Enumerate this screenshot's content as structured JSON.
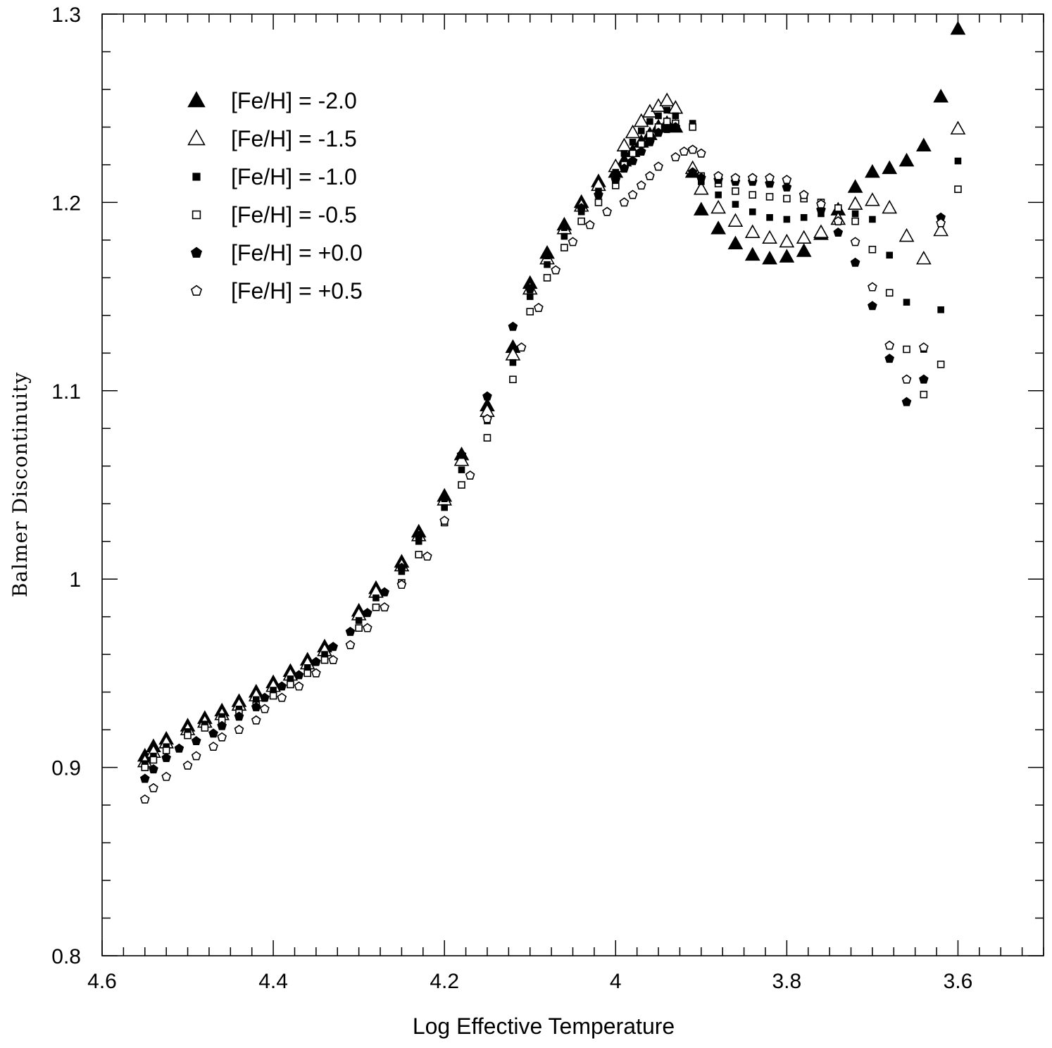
{
  "chart_data": {
    "type": "scatter",
    "title": "",
    "xlabel": "Log Effective Temperature",
    "ylabel": "Balmer Discontinuity",
    "xlim": [
      4.6,
      3.5
    ],
    "ylim": [
      0.8,
      1.3
    ],
    "x_reversed": true,
    "x_ticks": [
      "4.6",
      "4.4",
      "4.2",
      "4",
      "3.8",
      "3.6"
    ],
    "x_tick_values": [
      4.6,
      4.4,
      4.2,
      4.0,
      3.8,
      3.6
    ],
    "y_ticks": [
      "0.8",
      "0.9",
      "1",
      "1.1",
      "1.2",
      "1.3"
    ],
    "y_tick_values": [
      0.8,
      0.9,
      1.0,
      1.1,
      1.2,
      1.3
    ],
    "grid": false,
    "legend_position": "top-left",
    "series": [
      {
        "name": "[Fe/H] = -2.0",
        "marker": "triangle-filled",
        "points": [
          [
            4.55,
            0.906
          ],
          [
            4.54,
            0.911
          ],
          [
            4.525,
            0.915
          ],
          [
            4.5,
            0.922
          ],
          [
            4.48,
            0.926
          ],
          [
            4.46,
            0.93
          ],
          [
            4.44,
            0.935
          ],
          [
            4.42,
            0.94
          ],
          [
            4.4,
            0.945
          ],
          [
            4.38,
            0.951
          ],
          [
            4.36,
            0.957
          ],
          [
            4.34,
            0.964
          ],
          [
            4.3,
            0.983
          ],
          [
            4.28,
            0.995
          ],
          [
            4.25,
            1.009
          ],
          [
            4.23,
            1.025
          ],
          [
            4.2,
            1.044
          ],
          [
            4.18,
            1.066
          ],
          [
            4.15,
            1.092
          ],
          [
            4.12,
            1.123
          ],
          [
            4.1,
            1.157
          ],
          [
            4.08,
            1.173
          ],
          [
            4.06,
            1.188
          ],
          [
            4.04,
            1.2
          ],
          [
            4.02,
            1.211
          ],
          [
            4.0,
            1.216
          ],
          [
            3.99,
            1.222
          ],
          [
            3.98,
            1.227
          ],
          [
            3.97,
            1.232
          ],
          [
            3.96,
            1.236
          ],
          [
            3.95,
            1.24
          ],
          [
            3.94,
            1.242
          ],
          [
            3.93,
            1.24
          ],
          [
            3.91,
            1.216
          ],
          [
            3.9,
            1.196
          ],
          [
            3.88,
            1.186
          ],
          [
            3.86,
            1.178
          ],
          [
            3.84,
            1.172
          ],
          [
            3.82,
            1.17
          ],
          [
            3.8,
            1.171
          ],
          [
            3.78,
            1.174
          ],
          [
            3.76,
            1.183
          ],
          [
            3.74,
            1.196
          ],
          [
            3.72,
            1.208
          ],
          [
            3.7,
            1.216
          ],
          [
            3.68,
            1.218
          ],
          [
            3.66,
            1.222
          ],
          [
            3.64,
            1.23
          ],
          [
            3.62,
            1.256
          ],
          [
            3.6,
            1.292
          ]
        ]
      },
      {
        "name": "[Fe/H] = -1.5",
        "marker": "triangle-open",
        "points": [
          [
            4.55,
            0.903
          ],
          [
            4.54,
            0.908
          ],
          [
            4.525,
            0.913
          ],
          [
            4.5,
            0.92
          ],
          [
            4.48,
            0.924
          ],
          [
            4.46,
            0.928
          ],
          [
            4.44,
            0.933
          ],
          [
            4.42,
            0.938
          ],
          [
            4.4,
            0.943
          ],
          [
            4.38,
            0.949
          ],
          [
            4.36,
            0.955
          ],
          [
            4.34,
            0.962
          ],
          [
            4.3,
            0.981
          ],
          [
            4.28,
            0.993
          ],
          [
            4.25,
            1.007
          ],
          [
            4.23,
            1.023
          ],
          [
            4.2,
            1.042
          ],
          [
            4.18,
            1.063
          ],
          [
            4.15,
            1.089
          ],
          [
            4.12,
            1.119
          ],
          [
            4.1,
            1.154
          ],
          [
            4.08,
            1.17
          ],
          [
            4.06,
            1.186
          ],
          [
            4.04,
            1.198
          ],
          [
            4.02,
            1.209
          ],
          [
            4.0,
            1.219
          ],
          [
            3.99,
            1.23
          ],
          [
            3.98,
            1.237
          ],
          [
            3.97,
            1.243
          ],
          [
            3.96,
            1.248
          ],
          [
            3.95,
            1.251
          ],
          [
            3.94,
            1.254
          ],
          [
            3.93,
            1.25
          ],
          [
            3.91,
            1.218
          ],
          [
            3.9,
            1.207
          ],
          [
            3.88,
            1.197
          ],
          [
            3.86,
            1.19
          ],
          [
            3.84,
            1.184
          ],
          [
            3.82,
            1.181
          ],
          [
            3.8,
            1.179
          ],
          [
            3.78,
            1.181
          ],
          [
            3.76,
            1.184
          ],
          [
            3.74,
            1.191
          ],
          [
            3.72,
            1.199
          ],
          [
            3.7,
            1.201
          ],
          [
            3.68,
            1.197
          ],
          [
            3.66,
            1.182
          ],
          [
            3.64,
            1.17
          ],
          [
            3.62,
            1.185
          ],
          [
            3.6,
            1.239
          ]
        ]
      },
      {
        "name": "[Fe/H] = -1.0",
        "marker": "square-filled",
        "points": [
          [
            4.55,
            0.902
          ],
          [
            4.54,
            0.906
          ],
          [
            4.525,
            0.911
          ],
          [
            4.5,
            0.919
          ],
          [
            4.48,
            0.923
          ],
          [
            4.46,
            0.927
          ],
          [
            4.44,
            0.931
          ],
          [
            4.42,
            0.936
          ],
          [
            4.4,
            0.941
          ],
          [
            4.38,
            0.947
          ],
          [
            4.36,
            0.953
          ],
          [
            4.34,
            0.96
          ],
          [
            4.3,
            0.978
          ],
          [
            4.28,
            0.99
          ],
          [
            4.25,
            1.004
          ],
          [
            4.23,
            1.02
          ],
          [
            4.2,
            1.038
          ],
          [
            4.18,
            1.058
          ],
          [
            4.15,
            1.084
          ],
          [
            4.12,
            1.115
          ],
          [
            4.1,
            1.15
          ],
          [
            4.08,
            1.167
          ],
          [
            4.06,
            1.182
          ],
          [
            4.04,
            1.195
          ],
          [
            4.02,
            1.206
          ],
          [
            4.0,
            1.216
          ],
          [
            3.99,
            1.226
          ],
          [
            3.98,
            1.232
          ],
          [
            3.97,
            1.238
          ],
          [
            3.96,
            1.243
          ],
          [
            3.95,
            1.246
          ],
          [
            3.94,
            1.249
          ],
          [
            3.93,
            1.246
          ],
          [
            3.91,
            1.242
          ],
          [
            3.9,
            1.211
          ],
          [
            3.88,
            1.204
          ],
          [
            3.86,
            1.199
          ],
          [
            3.84,
            1.195
          ],
          [
            3.82,
            1.192
          ],
          [
            3.8,
            1.191
          ],
          [
            3.78,
            1.192
          ],
          [
            3.76,
            1.194
          ],
          [
            3.74,
            1.196
          ],
          [
            3.72,
            1.194
          ],
          [
            3.7,
            1.191
          ],
          [
            3.68,
            1.172
          ],
          [
            3.66,
            1.147
          ],
          [
            3.64,
            1.122
          ],
          [
            3.62,
            1.143
          ],
          [
            3.6,
            1.222
          ]
        ]
      },
      {
        "name": "[Fe/H] = -0.5",
        "marker": "square-open",
        "points": [
          [
            4.55,
            0.9
          ],
          [
            4.54,
            0.904
          ],
          [
            4.525,
            0.909
          ],
          [
            4.5,
            0.917
          ],
          [
            4.48,
            0.921
          ],
          [
            4.46,
            0.925
          ],
          [
            4.44,
            0.929
          ],
          [
            4.42,
            0.933
          ],
          [
            4.4,
            0.938
          ],
          [
            4.38,
            0.944
          ],
          [
            4.36,
            0.95
          ],
          [
            4.34,
            0.957
          ],
          [
            4.3,
            0.974
          ],
          [
            4.28,
            0.985
          ],
          [
            4.25,
            0.998
          ],
          [
            4.23,
            1.013
          ],
          [
            4.2,
            1.03
          ],
          [
            4.18,
            1.05
          ],
          [
            4.15,
            1.075
          ],
          [
            4.12,
            1.106
          ],
          [
            4.1,
            1.142
          ],
          [
            4.08,
            1.16
          ],
          [
            4.06,
            1.176
          ],
          [
            4.04,
            1.19
          ],
          [
            4.02,
            1.2
          ],
          [
            4.0,
            1.209
          ],
          [
            3.99,
            1.22
          ],
          [
            3.98,
            1.226
          ],
          [
            3.97,
            1.231
          ],
          [
            3.96,
            1.236
          ],
          [
            3.95,
            1.24
          ],
          [
            3.94,
            1.243
          ],
          [
            3.93,
            1.242
          ],
          [
            3.91,
            1.24
          ],
          [
            3.9,
            1.214
          ],
          [
            3.88,
            1.21
          ],
          [
            3.86,
            1.206
          ],
          [
            3.84,
            1.204
          ],
          [
            3.82,
            1.203
          ],
          [
            3.8,
            1.202
          ],
          [
            3.78,
            1.202
          ],
          [
            3.76,
            1.2
          ],
          [
            3.74,
            1.197
          ],
          [
            3.72,
            1.19
          ],
          [
            3.7,
            1.175
          ],
          [
            3.68,
            1.152
          ],
          [
            3.66,
            1.122
          ],
          [
            3.64,
            1.098
          ],
          [
            3.62,
            1.114
          ],
          [
            3.6,
            1.207
          ]
        ]
      },
      {
        "name": "[Fe/H] = +0.0",
        "marker": "pentagon-filled",
        "points": [
          [
            4.55,
            0.894
          ],
          [
            4.54,
            0.899
          ],
          [
            4.525,
            0.905
          ],
          [
            4.51,
            0.91
          ],
          [
            4.49,
            0.914
          ],
          [
            4.47,
            0.918
          ],
          [
            4.46,
            0.922
          ],
          [
            4.44,
            0.927
          ],
          [
            4.42,
            0.932
          ],
          [
            4.41,
            0.937
          ],
          [
            4.39,
            0.943
          ],
          [
            4.37,
            0.949
          ],
          [
            4.35,
            0.956
          ],
          [
            4.33,
            0.964
          ],
          [
            4.31,
            0.972
          ],
          [
            4.29,
            0.982
          ],
          [
            4.27,
            0.993
          ],
          [
            4.25,
            1.006
          ],
          [
            4.23,
            1.023
          ],
          [
            4.2,
            1.043
          ],
          [
            4.18,
            1.066
          ],
          [
            4.15,
            1.097
          ],
          [
            4.12,
            1.134
          ],
          [
            4.1,
            1.154
          ],
          [
            4.08,
            1.172
          ],
          [
            4.06,
            1.187
          ],
          [
            4.04,
            1.197
          ],
          [
            4.02,
            1.204
          ],
          [
            4.0,
            1.212
          ],
          [
            3.99,
            1.218
          ],
          [
            3.98,
            1.222
          ],
          [
            3.97,
            1.227
          ],
          [
            3.96,
            1.232
          ],
          [
            3.95,
            1.237
          ],
          [
            3.94,
            1.239
          ],
          [
            3.93,
            1.24
          ],
          [
            3.91,
            1.216
          ],
          [
            3.9,
            1.213
          ],
          [
            3.88,
            1.212
          ],
          [
            3.86,
            1.211
          ],
          [
            3.84,
            1.211
          ],
          [
            3.82,
            1.21
          ],
          [
            3.8,
            1.208
          ],
          [
            3.78,
            1.204
          ],
          [
            3.76,
            1.196
          ],
          [
            3.74,
            1.184
          ],
          [
            3.72,
            1.168
          ],
          [
            3.7,
            1.145
          ],
          [
            3.68,
            1.117
          ],
          [
            3.66,
            1.094
          ],
          [
            3.64,
            1.106
          ],
          [
            3.62,
            1.192
          ]
        ]
      },
      {
        "name": "[Fe/H] = +0.5",
        "marker": "pentagon-open",
        "points": [
          [
            4.55,
            0.883
          ],
          [
            4.54,
            0.889
          ],
          [
            4.525,
            0.895
          ],
          [
            4.5,
            0.901
          ],
          [
            4.49,
            0.906
          ],
          [
            4.47,
            0.911
          ],
          [
            4.46,
            0.916
          ],
          [
            4.44,
            0.92
          ],
          [
            4.42,
            0.925
          ],
          [
            4.41,
            0.931
          ],
          [
            4.39,
            0.937
          ],
          [
            4.37,
            0.943
          ],
          [
            4.35,
            0.95
          ],
          [
            4.33,
            0.957
          ],
          [
            4.31,
            0.965
          ],
          [
            4.29,
            0.974
          ],
          [
            4.27,
            0.985
          ],
          [
            4.25,
            0.997
          ],
          [
            4.22,
            1.012
          ],
          [
            4.2,
            1.031
          ],
          [
            4.17,
            1.055
          ],
          [
            4.15,
            1.085
          ],
          [
            4.11,
            1.123
          ],
          [
            4.09,
            1.144
          ],
          [
            4.07,
            1.164
          ],
          [
            4.05,
            1.179
          ],
          [
            4.03,
            1.188
          ],
          [
            4.01,
            1.195
          ],
          [
            3.99,
            1.2
          ],
          [
            3.98,
            1.204
          ],
          [
            3.97,
            1.209
          ],
          [
            3.96,
            1.214
          ],
          [
            3.95,
            1.219
          ],
          [
            3.93,
            1.224
          ],
          [
            3.92,
            1.227
          ],
          [
            3.91,
            1.228
          ],
          [
            3.9,
            1.226
          ],
          [
            3.88,
            1.214
          ],
          [
            3.86,
            1.213
          ],
          [
            3.84,
            1.213
          ],
          [
            3.82,
            1.213
          ],
          [
            3.8,
            1.212
          ],
          [
            3.78,
            1.204
          ],
          [
            3.76,
            1.199
          ],
          [
            3.74,
            1.19
          ],
          [
            3.72,
            1.179
          ],
          [
            3.7,
            1.155
          ],
          [
            3.68,
            1.124
          ],
          [
            3.66,
            1.106
          ],
          [
            3.64,
            1.123
          ],
          [
            3.62,
            1.189
          ]
        ]
      }
    ]
  }
}
